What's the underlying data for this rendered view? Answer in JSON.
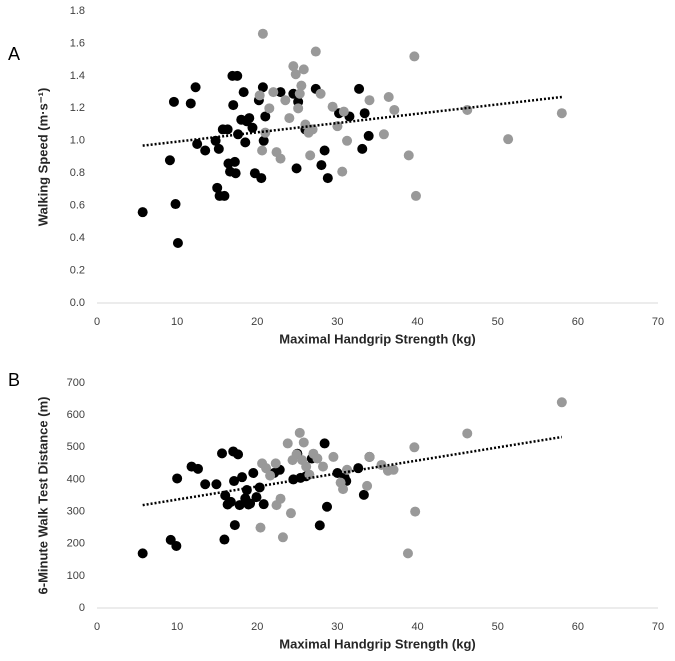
{
  "chart_data": [
    {
      "type": "scatter",
      "panel_label": "A",
      "x_label": "Maximal Handgrip Strength (kg)",
      "y_label": "Walking Speed (m·s⁻¹)",
      "xlim": [
        0,
        70
      ],
      "xticks": [
        0,
        10,
        20,
        30,
        40,
        50,
        60,
        70
      ],
      "ylim": [
        0,
        1.8
      ],
      "yticks": [
        {
          "value": 0,
          "label": "0.0"
        },
        0.2,
        0.4,
        0.6,
        0.8,
        {
          "value": 1,
          "label": "1.0"
        },
        1.2,
        1.4,
        1.6,
        1.8
      ],
      "series": [
        {
          "color": "#000000",
          "x": [
            5.7,
            9.1,
            9.6,
            9.8,
            10.1,
            11.7,
            12.3,
            12.5,
            13.5,
            14.8,
            15.0,
            15.2,
            15.3,
            15.7,
            15.9,
            16.3,
            16.4,
            16.6,
            16.9,
            17.0,
            17.2,
            17.3,
            17.5,
            17.6,
            18.0,
            18.3,
            18.5,
            18.7,
            19.0,
            19.4,
            19.7,
            20.2,
            20.5,
            20.7,
            20.8,
            21.0,
            22.9,
            24.5,
            24.9,
            25.1,
            26.0,
            27.3,
            28.0,
            28.4,
            28.8,
            30.2,
            31.5,
            32.7,
            33.1,
            33.4,
            33.9
          ],
          "values": [
            0.56,
            0.88,
            1.24,
            0.61,
            0.37,
            1.23,
            1.33,
            0.98,
            0.94,
            1.0,
            0.71,
            0.95,
            0.66,
            1.07,
            0.66,
            1.07,
            0.86,
            0.81,
            1.4,
            1.22,
            0.87,
            0.8,
            1.4,
            1.04,
            1.13,
            1.3,
            0.99,
            1.12,
            1.14,
            1.08,
            0.8,
            1.25,
            0.77,
            1.33,
            1.0,
            1.15,
            1.3,
            1.29,
            0.83,
            1.24,
            1.07,
            1.32,
            0.85,
            0.94,
            0.77,
            1.17,
            1.15,
            1.32,
            0.95,
            1.17,
            1.03
          ]
        },
        {
          "color": "#999999",
          "x": [
            20.7,
            20.3,
            20.6,
            21.0,
            21.5,
            22.0,
            22.4,
            22.9,
            23.5,
            24.0,
            24.5,
            24.8,
            25.1,
            25.3,
            25.5,
            25.8,
            26.0,
            26.4,
            26.6,
            26.9,
            27.3,
            27.9,
            29.4,
            30.0,
            30.6,
            30.8,
            31.2,
            34.0,
            35.8,
            36.4,
            37.1,
            38.9,
            39.6,
            39.8,
            46.2,
            51.3,
            58.0
          ],
          "values": [
            1.66,
            1.28,
            0.94,
            1.05,
            1.2,
            1.3,
            0.93,
            0.89,
            1.25,
            1.14,
            1.46,
            1.41,
            1.2,
            1.29,
            1.34,
            1.44,
            1.1,
            1.05,
            0.91,
            1.07,
            1.55,
            1.29,
            1.21,
            1.09,
            0.81,
            1.18,
            1.0,
            1.25,
            1.04,
            1.27,
            1.19,
            0.91,
            1.52,
            0.66,
            1.19,
            1.01,
            1.17
          ]
        }
      ],
      "trendline": {
        "x": [
          5.7,
          58
        ],
        "values": [
          0.97,
          1.27
        ]
      }
    },
    {
      "type": "scatter",
      "panel_label": "B",
      "x_label": "Maximal Handgrip Strength (kg)",
      "y_label": "6-Minute Walk Test Distance (m)",
      "xlim": [
        0,
        70
      ],
      "xticks": [
        0,
        10,
        20,
        30,
        40,
        50,
        60,
        70
      ],
      "ylim": [
        0,
        700
      ],
      "yticks": [
        0,
        100,
        200,
        300,
        400,
        500,
        600,
        700
      ],
      "series": [
        {
          "color": "#000000",
          "x": [
            5.7,
            9.2,
            9.9,
            10.0,
            11.8,
            12.6,
            13.5,
            14.9,
            15.6,
            15.9,
            16.0,
            16.3,
            16.7,
            17.0,
            17.1,
            17.2,
            17.6,
            17.8,
            18.1,
            18.5,
            18.7,
            18.9,
            19.1,
            19.5,
            19.9,
            20.3,
            20.8,
            22.1,
            22.8,
            24.5,
            25.0,
            25.4,
            26.1,
            26.8,
            27.8,
            28.4,
            28.7,
            30.0,
            30.9,
            31.1,
            32.6,
            33.3,
            34.0
          ],
          "values": [
            170,
            212,
            193,
            403,
            440,
            433,
            385,
            385,
            481,
            213,
            350,
            322,
            330,
            487,
            395,
            258,
            478,
            320,
            407,
            341,
            367,
            322,
            325,
            420,
            345,
            375,
            323,
            420,
            430,
            400,
            480,
            405,
            410,
            465,
            257,
            512,
            315,
            420,
            406,
            395,
            435,
            352,
            470
          ]
        },
        {
          "color": "#999999",
          "x": [
            20.4,
            20.6,
            21.1,
            21.6,
            22.3,
            22.4,
            22.9,
            23.2,
            23.8,
            24.2,
            24.4,
            24.9,
            25.3,
            25.6,
            25.8,
            26.1,
            26.5,
            27.0,
            27.5,
            28.2,
            29.5,
            30.4,
            30.7,
            31.2,
            33.7,
            34.0,
            35.5,
            36.3,
            37.0,
            38.8,
            39.6,
            39.7,
            46.2,
            58.0
          ],
          "values": [
            250,
            450,
            435,
            412,
            450,
            320,
            340,
            220,
            512,
            295,
            460,
            478,
            545,
            460,
            515,
            440,
            415,
            480,
            465,
            440,
            470,
            390,
            370,
            430,
            380,
            470,
            445,
            427,
            430,
            170,
            500,
            300,
            543,
            640
          ]
        }
      ],
      "trendline": {
        "x": [
          5.7,
          58
        ],
        "values": [
          320,
          532
        ]
      }
    }
  ]
}
